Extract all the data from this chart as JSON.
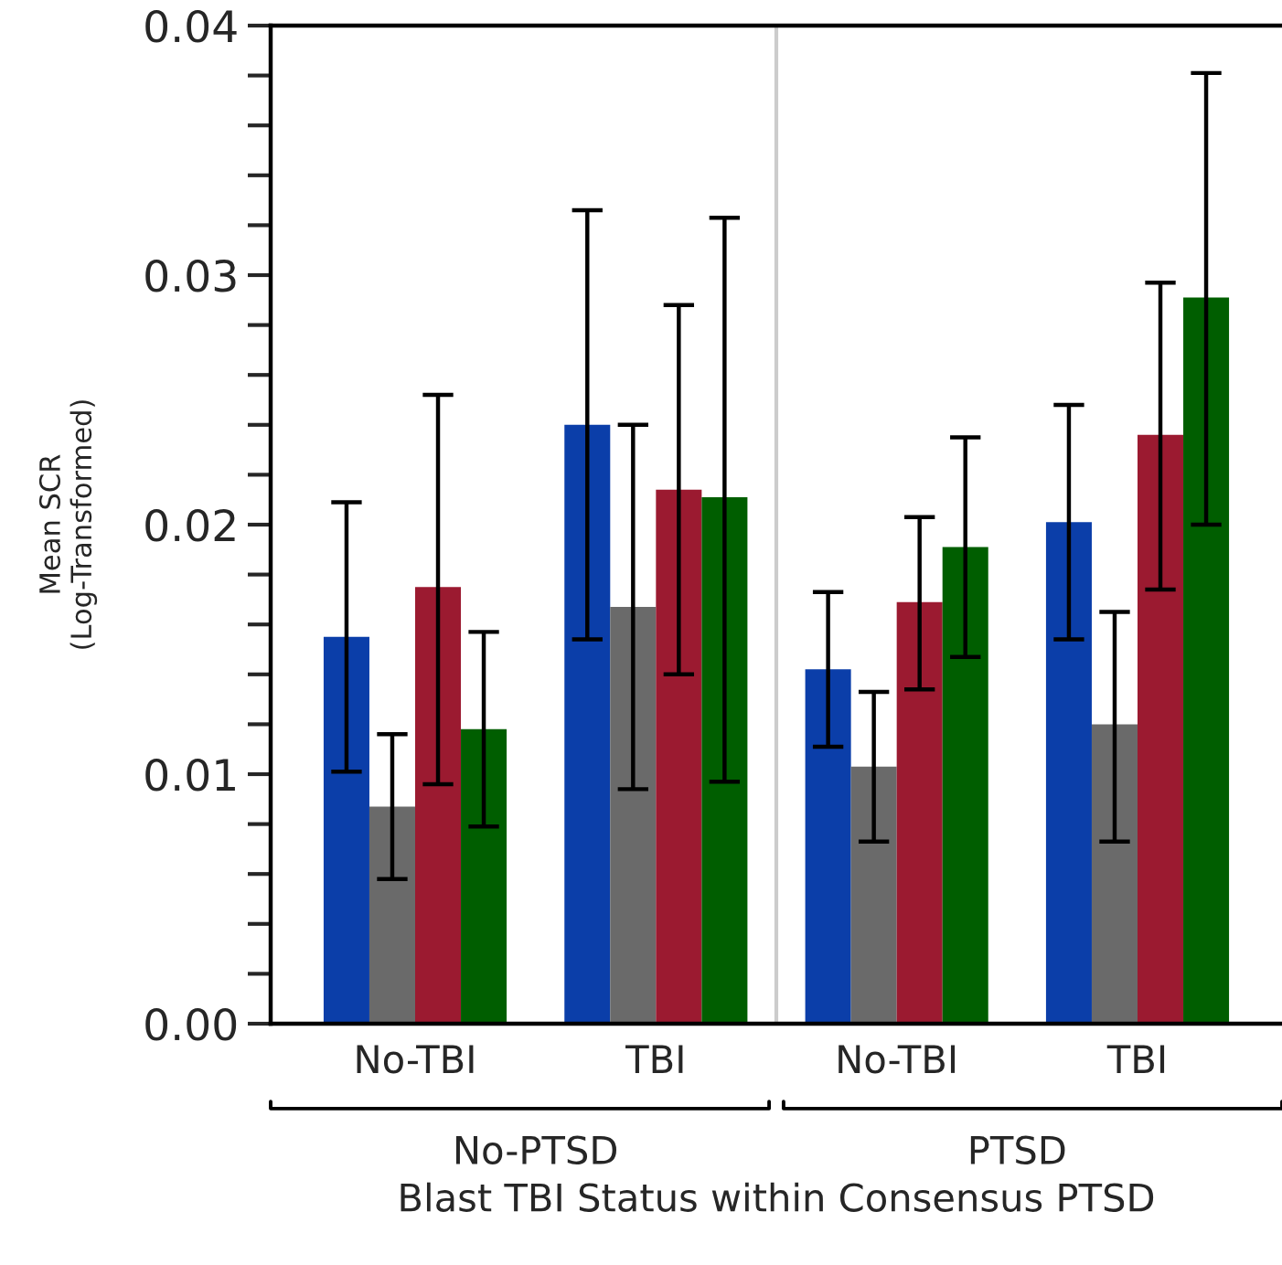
{
  "chart_data": {
    "type": "bar",
    "xlabel": "Blast TBI Status within Consensus PTSD",
    "ylabel": "Mean SCR\n(Log-Transformed)",
    "categories": [
      "No-TBI",
      "TBI",
      "No-TBI",
      "TBI"
    ],
    "annotations": [
      "No-PTSD",
      "PTSD"
    ],
    "series": [
      {
        "color": "#0b3ea9",
        "values": [
          0.0155,
          0.024,
          0.0142,
          0.0201
        ],
        "errors": [
          [
            0.0101,
            0.0209
          ],
          [
            0.0154,
            0.0326
          ],
          [
            0.0111,
            0.0173
          ],
          [
            0.0154,
            0.0248
          ]
        ]
      },
      {
        "color": "#6a6a6a",
        "values": [
          0.0087,
          0.0167,
          0.0103,
          0.012
        ],
        "errors": [
          [
            0.0058,
            0.0116
          ],
          [
            0.0094,
            0.024
          ],
          [
            0.0073,
            0.0133
          ],
          [
            0.0073,
            0.0165
          ]
        ]
      },
      {
        "color": "#9b1a30",
        "values": [
          0.0175,
          0.0214,
          0.0169,
          0.0236
        ],
        "errors": [
          [
            0.0096,
            0.0252
          ],
          [
            0.014,
            0.0288
          ],
          [
            0.0134,
            0.0203
          ],
          [
            0.0174,
            0.0297
          ]
        ]
      },
      {
        "color": "#005e00",
        "values": [
          0.0118,
          0.0211,
          0.0191,
          0.0291
        ],
        "errors": [
          [
            0.0079,
            0.0157
          ],
          [
            0.0097,
            0.0323
          ],
          [
            0.0147,
            0.0235
          ],
          [
            0.02,
            0.0381
          ]
        ]
      }
    ],
    "ylim": [
      0,
      0.04
    ],
    "yticks": [
      {
        "value": 0,
        "label": "0.00"
      },
      {
        "value": 0.002,
        "label": null
      },
      {
        "value": 0.004,
        "label": null
      },
      {
        "value": 0.006,
        "label": null
      },
      {
        "value": 0.008,
        "label": null
      },
      {
        "value": 0.01,
        "label": "0.01"
      },
      {
        "value": 0.012,
        "label": null
      },
      {
        "value": 0.014,
        "label": null
      },
      {
        "value": 0.016,
        "label": null
      },
      {
        "value": 0.018,
        "label": null
      },
      {
        "value": 0.02,
        "label": "0.02"
      },
      {
        "value": 0.022,
        "label": null
      },
      {
        "value": 0.024,
        "label": null
      },
      {
        "value": 0.026,
        "label": null
      },
      {
        "value": 0.028,
        "label": null
      },
      {
        "value": 0.03,
        "label": "0.03"
      },
      {
        "value": 0.032,
        "label": null
      },
      {
        "value": 0.034,
        "label": null
      },
      {
        "value": 0.036,
        "label": null
      },
      {
        "value": 0.038,
        "label": null
      },
      {
        "value": 0.04,
        "label": "0.04"
      }
    ],
    "grid": false
  }
}
